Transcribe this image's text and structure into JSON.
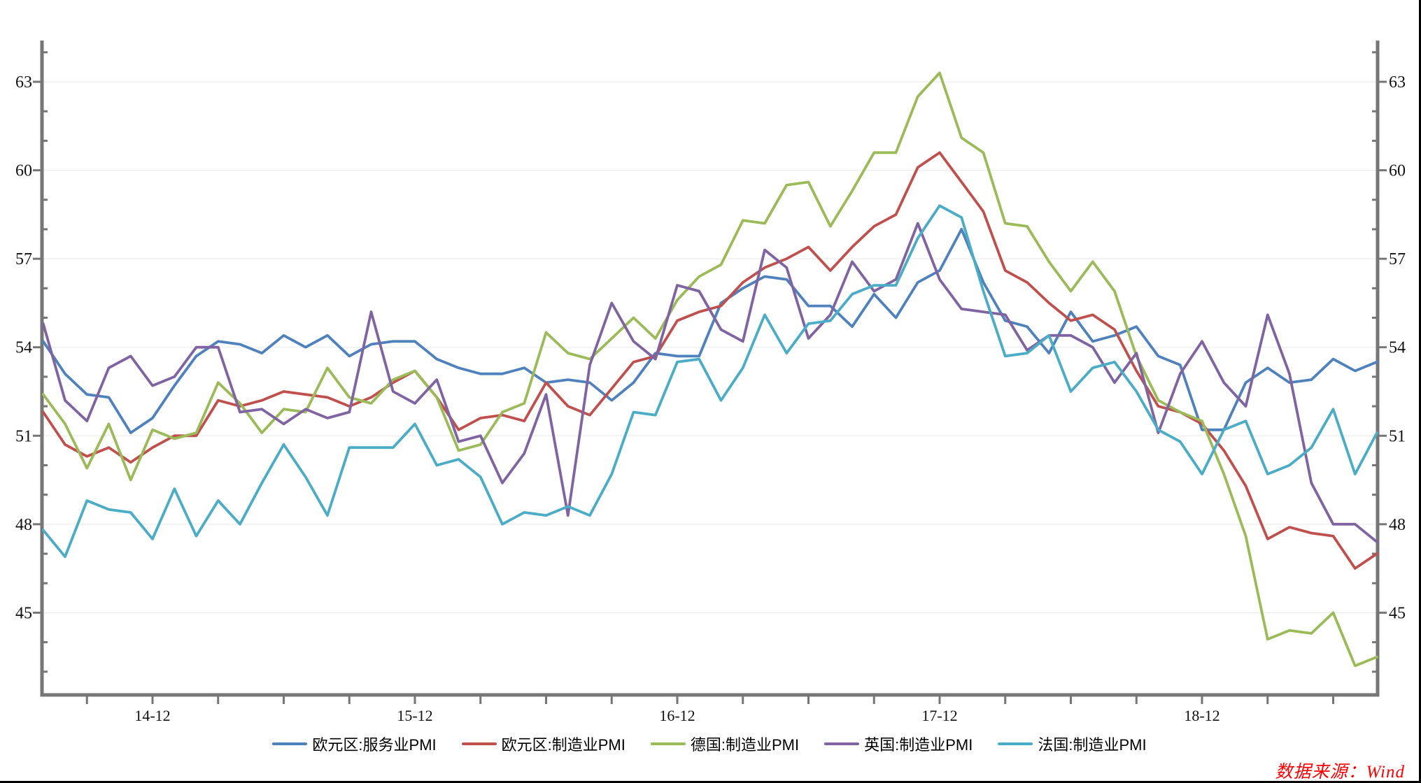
{
  "source_note": "数据来源：Wind",
  "colors": {
    "axis": "#767676",
    "grid": "#F0F0F0",
    "tick_label": "#111111",
    "source_note": "#FF0000",
    "background": "#FFFFFF",
    "page_border": "#000000"
  },
  "chart_data": {
    "type": "line",
    "title": "",
    "frequency": "monthly",
    "x_start": "2014-07",
    "x_end": "2019-08",
    "x_axis_tick_labels": [
      "14-12",
      "15-12",
      "16-12",
      "17-12",
      "18-12"
    ],
    "x_label_month_indices": [
      5,
      17,
      29,
      41,
      53
    ],
    "x_minor_tick_every_months": 3,
    "y_ticks": [
      45,
      48,
      51,
      54,
      57,
      60,
      63
    ],
    "y_minor_tick_step": 1,
    "ylim": [
      42.2,
      64.4
    ],
    "y_axis_sides": [
      "left",
      "right"
    ],
    "grid": "horizontal-only",
    "legend_position": "bottom",
    "series": [
      {
        "id": "eurozone-services-pmi",
        "name": "欧元区:服务业PMI",
        "color": "#4F81BD",
        "values": [
          54.2,
          53.1,
          52.4,
          52.3,
          51.1,
          51.6,
          52.7,
          53.7,
          54.2,
          54.1,
          53.8,
          54.4,
          54.0,
          54.4,
          53.7,
          54.1,
          54.2,
          54.2,
          53.6,
          53.3,
          53.1,
          53.1,
          53.3,
          52.8,
          52.9,
          52.8,
          52.2,
          52.8,
          53.8,
          53.7,
          53.7,
          55.5,
          56.0,
          56.4,
          56.3,
          55.4,
          55.4,
          54.7,
          55.8,
          55.0,
          56.2,
          56.6,
          58.0,
          56.2,
          54.9,
          54.7,
          53.8,
          55.2,
          54.2,
          54.4,
          54.7,
          53.7,
          53.4,
          51.2,
          51.2,
          52.8,
          53.3,
          52.8,
          52.9,
          53.6,
          53.2,
          53.5
        ]
      },
      {
        "id": "eurozone-manufacturing-pmi",
        "name": "欧元区:制造业PMI",
        "color": "#C0504D",
        "values": [
          51.8,
          50.7,
          50.3,
          50.6,
          50.1,
          50.6,
          51.0,
          51.0,
          52.2,
          52.0,
          52.2,
          52.5,
          52.4,
          52.3,
          52.0,
          52.3,
          52.8,
          53.2,
          52.3,
          51.2,
          51.6,
          51.7,
          51.5,
          52.8,
          52.0,
          51.7,
          52.6,
          53.5,
          53.7,
          54.9,
          55.2,
          55.4,
          56.2,
          56.7,
          57.0,
          57.4,
          56.6,
          57.4,
          58.1,
          58.5,
          60.1,
          60.6,
          59.6,
          58.6,
          56.6,
          56.2,
          55.5,
          54.9,
          55.1,
          54.6,
          53.2,
          52.0,
          51.8,
          51.4,
          50.5,
          49.3,
          47.5,
          47.9,
          47.7,
          47.6,
          46.5,
          47.0
        ]
      },
      {
        "id": "germany-manufacturing-pmi",
        "name": "德国:制造业PMI",
        "color": "#9BBB59",
        "values": [
          52.4,
          51.4,
          49.9,
          51.4,
          49.5,
          51.2,
          50.9,
          51.1,
          52.8,
          52.1,
          51.1,
          51.9,
          51.8,
          53.3,
          52.3,
          52.1,
          52.9,
          53.2,
          52.3,
          50.5,
          50.7,
          51.8,
          52.1,
          54.5,
          53.8,
          53.6,
          54.3,
          55.0,
          54.3,
          55.6,
          56.4,
          56.8,
          58.3,
          58.2,
          59.5,
          59.6,
          58.1,
          59.3,
          60.6,
          60.6,
          62.5,
          63.3,
          61.1,
          60.6,
          58.2,
          58.1,
          56.9,
          55.9,
          56.9,
          55.9,
          53.7,
          52.2,
          51.8,
          51.5,
          49.7,
          47.6,
          44.1,
          44.4,
          44.3,
          45.0,
          43.2,
          43.5
        ]
      },
      {
        "id": "uk-manufacturing-pmi",
        "name": "英国:制造业PMI",
        "color": "#8064A2",
        "values": [
          54.8,
          52.2,
          51.5,
          53.3,
          53.7,
          52.7,
          53.0,
          54.0,
          54.0,
          51.8,
          51.9,
          51.4,
          51.9,
          51.6,
          51.8,
          55.2,
          52.5,
          52.1,
          52.9,
          50.8,
          51.0,
          49.4,
          50.4,
          52.4,
          48.3,
          53.4,
          55.5,
          54.2,
          53.6,
          56.1,
          55.9,
          54.6,
          54.2,
          57.3,
          56.7,
          54.3,
          55.1,
          56.9,
          55.9,
          56.3,
          58.2,
          56.3,
          55.3,
          55.2,
          55.1,
          53.9,
          54.4,
          54.4,
          54.0,
          52.8,
          53.8,
          51.1,
          53.1,
          54.2,
          52.8,
          52.0,
          55.1,
          53.1,
          49.4,
          48.0,
          48.0,
          47.4
        ]
      },
      {
        "id": "france-manufacturing-pmi",
        "name": "法国:制造业PMI",
        "color": "#4BACC6",
        "values": [
          47.8,
          46.9,
          48.8,
          48.5,
          48.4,
          47.5,
          49.2,
          47.6,
          48.8,
          48.0,
          49.4,
          50.7,
          49.6,
          48.3,
          50.6,
          50.6,
          50.6,
          51.4,
          50.0,
          50.2,
          49.6,
          48.0,
          48.4,
          48.3,
          48.6,
          48.3,
          49.7,
          51.8,
          51.7,
          53.5,
          53.6,
          52.2,
          53.3,
          55.1,
          53.8,
          54.8,
          54.9,
          55.8,
          56.1,
          56.1,
          57.7,
          58.8,
          58.4,
          55.9,
          53.7,
          53.8,
          54.4,
          52.5,
          53.3,
          53.5,
          52.5,
          51.2,
          50.8,
          49.7,
          51.2,
          51.5,
          49.7,
          50.0,
          50.6,
          51.9,
          49.7,
          51.1
        ]
      }
    ]
  }
}
